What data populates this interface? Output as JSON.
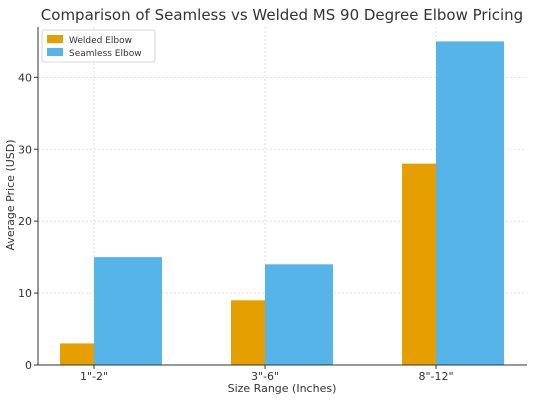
{
  "chart_data": {
    "type": "bar",
    "title": "Comparison of Seamless vs Welded MS 90 Degree Elbow Pricing",
    "xlabel": "Size Range (Inches)",
    "ylabel": "Average Price (USD)",
    "categories": [
      "1\"-2\"",
      "3\"-6\"",
      "8\"-12\""
    ],
    "series": [
      {
        "name": "Welded Elbow",
        "values": [
          3,
          9,
          28
        ],
        "color": "#E69F00"
      },
      {
        "name": "Seamless Elbow",
        "values": [
          15,
          14,
          45
        ],
        "color": "#56B4E9"
      }
    ],
    "ylim": [
      0,
      47
    ],
    "yticks": [
      0,
      10,
      20,
      30,
      40
    ],
    "grid": true,
    "legend_position": "top-left"
  }
}
